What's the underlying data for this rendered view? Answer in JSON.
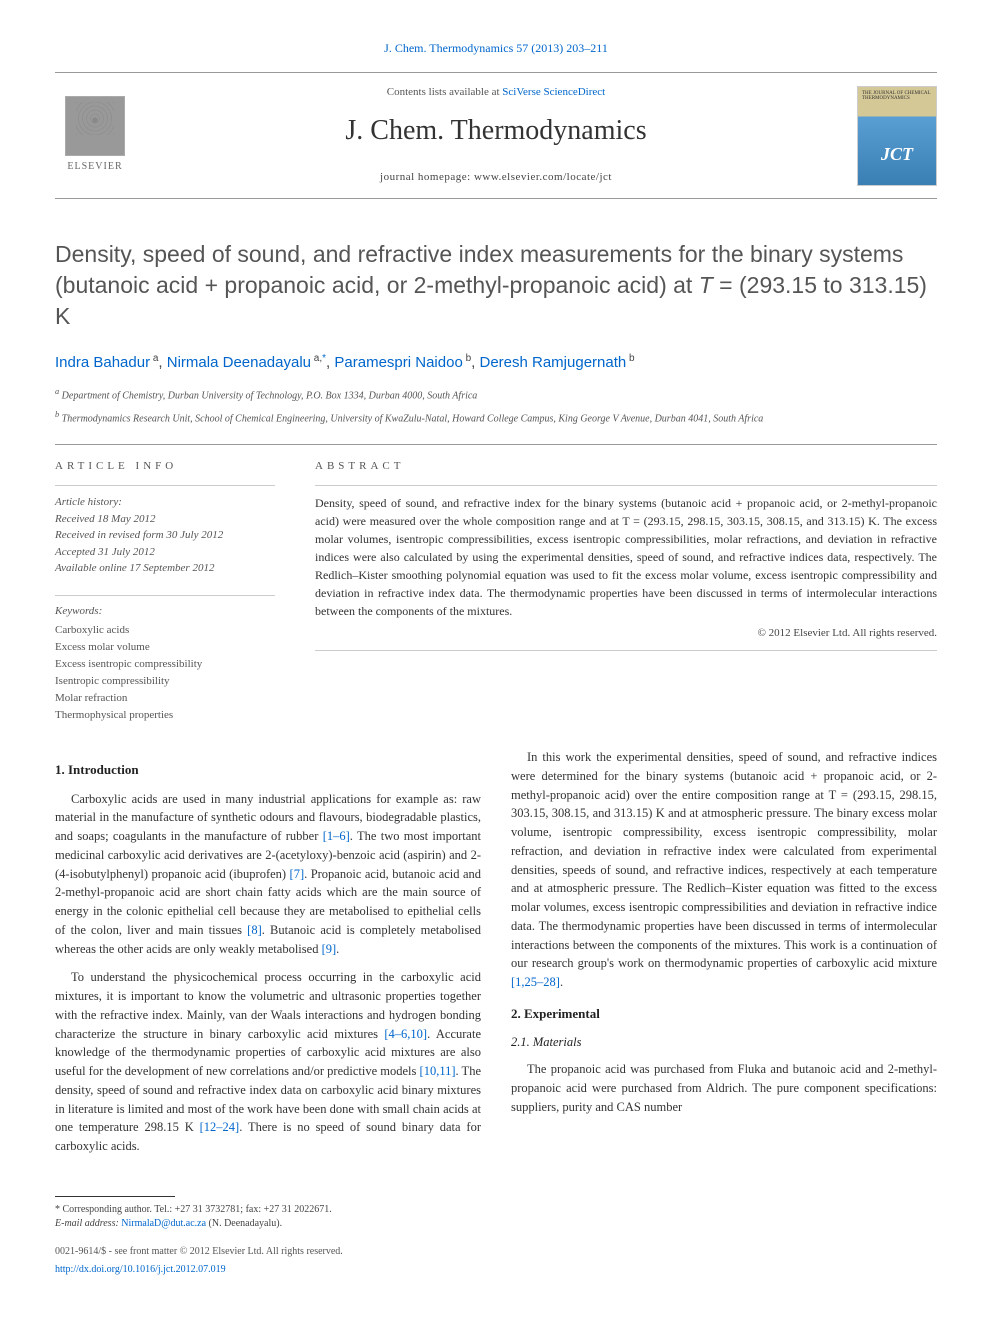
{
  "meta": {
    "top_citation": "J. Chem. Thermodynamics 57 (2013) 203–211",
    "contents_prefix": "Contents lists available at ",
    "contents_link": "SciVerse ScienceDirect",
    "journal_title": "J. Chem. Thermodynamics",
    "homepage_prefix": "journal homepage: ",
    "homepage_url": "www.elsevier.com/locate/jct",
    "elsevier_label": "ELSEVIER",
    "cover_label": "THE JOURNAL OF CHEMICAL THERMODYNAMICS",
    "cover_big": "JCT"
  },
  "title": "Density, speed of sound, and refractive index measurements for the binary systems (butanoic acid + propanoic acid, or 2-methyl-propanoic acid) at T = (293.15 to 313.15) K",
  "authors_html": "Indra Bahadur <sup>a</sup>, Nirmala Deenadayalu <sup>a,*</sup>, Paramespri Naidoo <sup>b</sup>, Deresh Ramjugernath <sup>b</sup>",
  "authors": [
    {
      "name": "Indra Bahadur",
      "aff": "a"
    },
    {
      "name": "Nirmala Deenadayalu",
      "aff": "a,*",
      "corresponding": true
    },
    {
      "name": "Paramespri Naidoo",
      "aff": "b"
    },
    {
      "name": "Deresh Ramjugernath",
      "aff": "b"
    }
  ],
  "affiliations": {
    "a": "Department of Chemistry, Durban University of Technology, P.O. Box 1334, Durban 4000, South Africa",
    "b": "Thermodynamics Research Unit, School of Chemical Engineering, University of KwaZulu-Natal, Howard College Campus, King George V Avenue, Durban 4041, South Africa"
  },
  "article_info": {
    "heading": "ARTICLE INFO",
    "history_label": "Article history:",
    "received": "Received 18 May 2012",
    "revised": "Received in revised form 30 July 2012",
    "accepted": "Accepted 31 July 2012",
    "online": "Available online 17 September 2012",
    "keywords_label": "Keywords:",
    "keywords": [
      "Carboxylic acids",
      "Excess molar volume",
      "Excess isentropic compressibility",
      "Isentropic compressibility",
      "Molar refraction",
      "Thermophysical properties"
    ]
  },
  "abstract": {
    "heading": "ABSTRACT",
    "text": "Density, speed of sound, and refractive index for the binary systems (butanoic acid + propanoic acid, or 2-methyl-propanoic acid) were measured over the whole composition range and at T = (293.15, 298.15, 303.15, 308.15, and 313.15) K. The excess molar volumes, isentropic compressibilities, excess isentropic compressibilities, molar refractions, and deviation in refractive indices were also calculated by using the experimental densities, speed of sound, and refractive indices data, respectively. The Redlich–Kister smoothing polynomial equation was used to fit the excess molar volume, excess isentropic compressibility and deviation in refractive index data. The thermodynamic properties have been discussed in terms of intermolecular interactions between the components of the mixtures.",
    "copyright": "© 2012 Elsevier Ltd. All rights reserved."
  },
  "sections": {
    "intro_heading": "1. Introduction",
    "intro_p1a": "Carboxylic acids are used in many industrial applications for example as: raw material in the manufacture of synthetic odours and flavours, biodegradable plastics, and soaps; coagulants in the manufacture of rubber ",
    "intro_p1_ref1": "[1–6]",
    "intro_p1b": ". The two most important medicinal carboxylic acid derivatives are 2-(acetyloxy)-benzoic acid (aspirin) and 2-(4-isobutylphenyl) propanoic acid (ibuprofen) ",
    "intro_p1_ref2": "[7]",
    "intro_p1c": ". Propanoic acid, butanoic acid and 2-methyl-propanoic acid are short chain fatty acids which are the main source of energy in the colonic epithelial cell because they are metabolised to epithelial cells of the colon, liver and main tissues ",
    "intro_p1_ref3": "[8]",
    "intro_p1d": ". Butanoic acid is completely metabolised whereas the other acids are only weakly metabolised ",
    "intro_p1_ref4": "[9]",
    "intro_p1e": ".",
    "intro_p2a": "To understand the physicochemical process occurring in the carboxylic acid mixtures, it is important to know the volumetric and ultrasonic properties together with the refractive index. Mainly, van der Waals interactions and hydrogen bonding characterize the structure in binary carboxylic acid mixtures ",
    "intro_p2_ref1": "[4–6,10]",
    "intro_p2b": ". Accurate knowledge of the thermodynamic properties of carboxylic acid mixtures are also useful for the development of new correlations and/or predictive models ",
    "intro_p2_ref2": "[10,11]",
    "intro_p2c": ". The density, speed of sound and refractive index data on carboxylic acid binary mixtures in literature is limited and most of the work have been done with ",
    "intro_p2d": "small chain acids at one temperature 298.15 K ",
    "intro_p2_ref3": "[12–24]",
    "intro_p2e": ". There is no speed of sound binary data for carboxylic acids.",
    "intro_p3a": "In this work the experimental densities, speed of sound, and refractive indices were determined for the binary systems (butanoic acid + propanoic acid, or 2-methyl-propanoic acid) over the entire composition range at T = (293.15, 298.15, 303.15, 308.15, and 313.15) K and at atmospheric pressure. The binary excess molar volume, isentropic compressibility, excess isentropic compressibility, molar refraction, and deviation in refractive index were calculated from experimental densities, speeds of sound, and refractive indices, respectively at each temperature and at atmospheric pressure. The Redlich–Kister equation was fitted to the excess molar volumes, excess isentropic compressibilities and deviation in refractive indice data. The thermodynamic properties have been discussed in terms of intermolecular interactions between the components of the mixtures. This work is a continuation of our research group's work on thermodynamic properties of carboxylic acid mixture ",
    "intro_p3_ref1": "[1,25–28]",
    "intro_p3b": ".",
    "exp_heading": "2. Experimental",
    "materials_heading": "2.1. Materials",
    "materials_p1": "The propanoic acid was purchased from Fluka and butanoic acid and 2-methyl-propanoic acid were purchased from Aldrich. The pure component specifications: suppliers, purity and CAS number"
  },
  "footnote": {
    "corr_label": "* Corresponding author. Tel.: +27 31 3732781; fax: +27 31 2022671.",
    "email_label": "E-mail address: ",
    "email": "NirmalaD@dut.ac.za",
    "email_suffix": " (N. Deenadayalu)."
  },
  "footer": {
    "issn_line": "0021-9614/$ - see front matter © 2012 Elsevier Ltd. All rights reserved.",
    "doi": "http://dx.doi.org/10.1016/j.jct.2012.07.019"
  },
  "colors": {
    "link": "#0066cc",
    "text": "#333333",
    "muted": "#555555",
    "rule": "#999999"
  }
}
